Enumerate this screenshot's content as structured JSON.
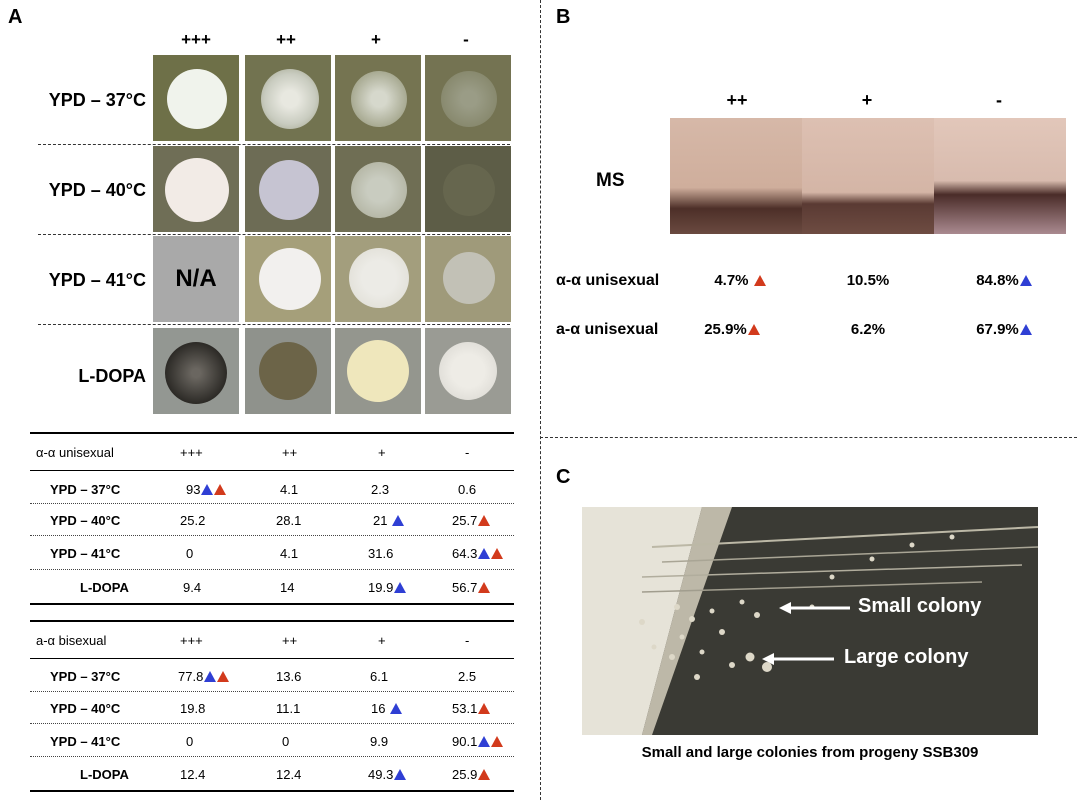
{
  "panels": {
    "a": "A",
    "b": "B",
    "c": "C"
  },
  "panel_a": {
    "col_headers": [
      "+++",
      "++",
      "+",
      "-"
    ],
    "rows": [
      {
        "label": "YPD – 37°C"
      },
      {
        "label": "YPD – 40°C"
      },
      {
        "label": "YPD – 41°C",
        "na": "N/A"
      },
      {
        "label": "L-DOPA"
      }
    ]
  },
  "table1": {
    "title": "α-α unisexual",
    "headers": [
      "+++",
      "++",
      "+",
      "-"
    ],
    "rows": [
      {
        "label": "YPD – 37°C",
        "vals": [
          "93",
          "4.1",
          "2.3",
          "0.6"
        ]
      },
      {
        "label": "YPD – 40°C",
        "vals": [
          "25.2",
          "28.1",
          "21",
          "25.7"
        ]
      },
      {
        "label": "YPD – 41°C",
        "vals": [
          "0",
          "4.1",
          "31.6",
          "64.3"
        ]
      },
      {
        "label": "L-DOPA",
        "vals": [
          "9.4",
          "14",
          "19.9",
          "56.7"
        ]
      }
    ]
  },
  "table2": {
    "title": "a-α bisexual",
    "headers": [
      "+++",
      "++",
      "+",
      "-"
    ],
    "rows": [
      {
        "label": "YPD – 37°C",
        "vals": [
          "77.8",
          "13.6",
          "6.1",
          "2.5"
        ]
      },
      {
        "label": "YPD – 40°C",
        "vals": [
          "19.8",
          "11.1",
          "16",
          "53.1"
        ]
      },
      {
        "label": "YPD – 41°C",
        "vals": [
          "0",
          "0",
          "9.9",
          "90.1"
        ]
      },
      {
        "label": "L-DOPA",
        "vals": [
          "12.4",
          "12.4",
          "49.3",
          "25.9"
        ]
      }
    ]
  },
  "panel_b": {
    "headers": [
      "++",
      "+",
      "-"
    ],
    "ms_label": "MS",
    "rows": [
      {
        "label": "α-α unisexual",
        "vals": [
          "4.7%",
          "10.5%",
          "84.8%"
        ]
      },
      {
        "label": "a-α unisexual",
        "vals": [
          "25.9%",
          "6.2%",
          "67.9%"
        ]
      }
    ]
  },
  "panel_c": {
    "small": "Small colony",
    "large": "Large colony",
    "caption": "Small and large colonies from progeny SSB309"
  },
  "colors": {
    "blue_marker": "#2f3fd4",
    "red_marker": "#d23a1c"
  }
}
